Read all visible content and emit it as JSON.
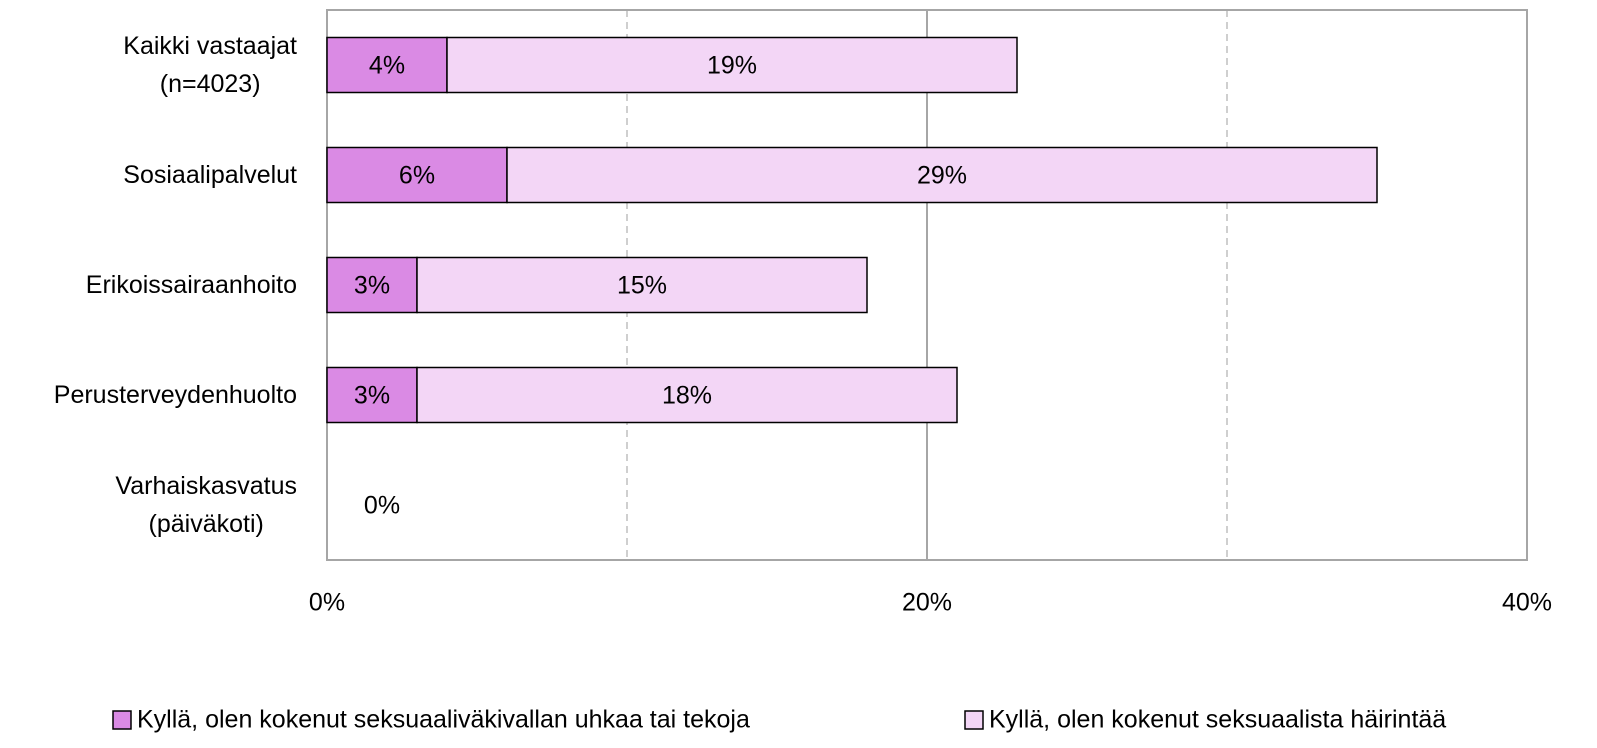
{
  "chart_data": {
    "type": "stacked-bar-horizontal",
    "categories": [
      "Kaikki vastaajat\n(n=4023)",
      "Sosiaalipalvelut",
      "Erikoissairaanhoito",
      "Perusterveydenhuolto",
      "Varhaiskasvatus\n(päiväkoti)"
    ],
    "series": [
      {
        "name": "Kyllä, olen kokenut seksuaaliväkivallan uhkaa tai tekoja",
        "color": "#da8ae4",
        "values": [
          4,
          6,
          3,
          3,
          0
        ],
        "value_labels": [
          "4%",
          "6%",
          "3%",
          "3%",
          "0%"
        ]
      },
      {
        "name": "Kyllä, olen kokenut seksuaalista häirintää",
        "color": "#f3d6f6",
        "values": [
          19,
          29,
          15,
          18,
          null
        ],
        "value_labels": [
          "19%",
          "29%",
          "15%",
          "18%",
          null
        ]
      }
    ],
    "xlim": [
      0,
      40
    ],
    "xticks": [
      {
        "value": 0,
        "label": "0%"
      },
      {
        "value": 20,
        "label": "20%"
      },
      {
        "value": 40,
        "label": "40%"
      }
    ],
    "minor_grid": [
      10,
      30
    ],
    "grid": true,
    "legend": "bottom"
  }
}
